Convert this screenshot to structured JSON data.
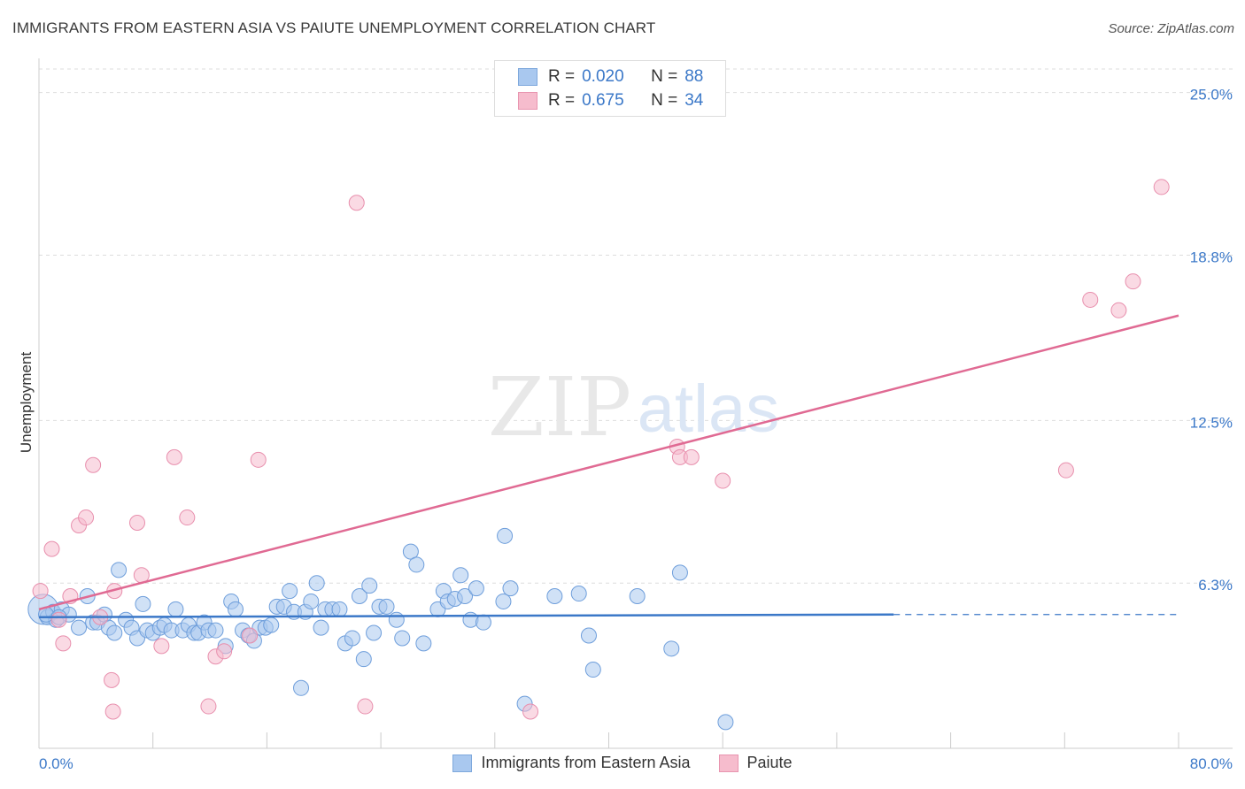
{
  "title": "IMMIGRANTS FROM EASTERN ASIA VS PAIUTE UNEMPLOYMENT CORRELATION CHART",
  "source": "Source: ZipAtlas.com",
  "watermark": {
    "zip": "ZIP",
    "atlas": "atlas"
  },
  "colors": {
    "blue": "#3b78c8",
    "blue_fill": "#a9c8ef",
    "pink": "#e06a93",
    "pink_fill": "#f6bccd",
    "grid": "#dddddd",
    "tick_label": "#3b78c8"
  },
  "legend": {
    "rows": [
      {
        "r_label": "R =",
        "r_value": "0.020",
        "n_label": "N =",
        "n_value": "88"
      },
      {
        "r_label": "R =",
        "r_value": "0.675",
        "n_label": "N =",
        "n_value": "34"
      }
    ]
  },
  "bottom_legend": {
    "series_a": "Immigrants from Eastern Asia",
    "series_b": "Paiute"
  },
  "chart_data": {
    "type": "scatter",
    "title": "IMMIGRANTS FROM EASTERN ASIA VS PAIUTE UNEMPLOYMENT CORRELATION CHART",
    "xlabel": "",
    "ylabel": "Unemployment",
    "xlim": [
      0,
      80
    ],
    "ylim": [
      0,
      25.9
    ],
    "x_tick_labels": [
      "0.0%",
      "80.0%"
    ],
    "y_ticks": [
      6.3,
      12.5,
      18.8,
      25.0
    ],
    "y_tick_labels": [
      "6.3%",
      "12.5%",
      "18.8%",
      "25.0%"
    ],
    "grid": true,
    "legend_placement": "top-center",
    "series": [
      {
        "name": "Immigrants from Eastern Asia",
        "color": "#3b78c8",
        "r": 0.02,
        "n": 88,
        "trend": {
          "x0": 0,
          "y0": 5.0,
          "x1": 60,
          "y1": 5.1,
          "dashed_to": 80,
          "dashed_y": 5.1
        },
        "points": [
          [
            0.3,
            5.3
          ],
          [
            0.6,
            5.0
          ],
          [
            1.0,
            5.2
          ],
          [
            1.2,
            4.9
          ],
          [
            1.6,
            5.3
          ],
          [
            2.1,
            5.1
          ],
          [
            2.8,
            4.6
          ],
          [
            3.4,
            5.8
          ],
          [
            3.8,
            4.8
          ],
          [
            4.1,
            4.8
          ],
          [
            4.6,
            5.1
          ],
          [
            4.9,
            4.6
          ],
          [
            5.3,
            4.4
          ],
          [
            5.6,
            6.8
          ],
          [
            6.1,
            4.9
          ],
          [
            6.5,
            4.6
          ],
          [
            6.9,
            4.2
          ],
          [
            7.3,
            5.5
          ],
          [
            7.6,
            4.5
          ],
          [
            8.0,
            4.4
          ],
          [
            8.5,
            4.6
          ],
          [
            8.8,
            4.7
          ],
          [
            9.3,
            4.5
          ],
          [
            9.6,
            5.3
          ],
          [
            10.1,
            4.5
          ],
          [
            10.5,
            4.7
          ],
          [
            10.9,
            4.4
          ],
          [
            11.2,
            4.4
          ],
          [
            11.6,
            4.8
          ],
          [
            11.9,
            4.5
          ],
          [
            12.4,
            4.5
          ],
          [
            13.1,
            3.9
          ],
          [
            13.5,
            5.6
          ],
          [
            13.8,
            5.3
          ],
          [
            14.3,
            4.5
          ],
          [
            14.7,
            4.3
          ],
          [
            15.1,
            4.1
          ],
          [
            15.5,
            4.6
          ],
          [
            15.9,
            4.6
          ],
          [
            16.3,
            4.7
          ],
          [
            16.7,
            5.4
          ],
          [
            17.2,
            5.4
          ],
          [
            17.6,
            6.0
          ],
          [
            17.9,
            5.2
          ],
          [
            18.4,
            2.3
          ],
          [
            18.7,
            5.2
          ],
          [
            19.1,
            5.6
          ],
          [
            19.5,
            6.3
          ],
          [
            19.8,
            4.6
          ],
          [
            20.1,
            5.3
          ],
          [
            20.6,
            5.3
          ],
          [
            21.1,
            5.3
          ],
          [
            21.5,
            4.0
          ],
          [
            22.0,
            4.2
          ],
          [
            22.5,
            5.8
          ],
          [
            22.8,
            3.4
          ],
          [
            23.2,
            6.2
          ],
          [
            23.5,
            4.4
          ],
          [
            23.9,
            5.4
          ],
          [
            24.4,
            5.4
          ],
          [
            25.1,
            4.9
          ],
          [
            25.5,
            4.2
          ],
          [
            26.1,
            7.5
          ],
          [
            26.5,
            7.0
          ],
          [
            27.0,
            4.0
          ],
          [
            28.0,
            5.3
          ],
          [
            28.4,
            6.0
          ],
          [
            28.7,
            5.6
          ],
          [
            29.2,
            5.7
          ],
          [
            29.6,
            6.6
          ],
          [
            29.9,
            5.8
          ],
          [
            30.3,
            4.9
          ],
          [
            30.7,
            6.1
          ],
          [
            31.2,
            4.8
          ],
          [
            32.6,
            5.6
          ],
          [
            32.7,
            8.1
          ],
          [
            33.1,
            6.1
          ],
          [
            34.1,
            1.7
          ],
          [
            36.2,
            5.8
          ],
          [
            37.9,
            5.9
          ],
          [
            38.6,
            4.3
          ],
          [
            38.9,
            3.0
          ],
          [
            42.0,
            5.8
          ],
          [
            44.4,
            3.8
          ],
          [
            45.0,
            6.7
          ],
          [
            48.2,
            1.0
          ],
          [
            0.5,
            5.1
          ],
          [
            1.4,
            5.0
          ]
        ]
      },
      {
        "name": "Paiute",
        "color": "#e06a93",
        "r": 0.675,
        "n": 34,
        "trend": {
          "x0": 0,
          "y0": 5.3,
          "x1": 80,
          "y1": 16.5
        },
        "points": [
          [
            0.1,
            6.0
          ],
          [
            0.9,
            7.6
          ],
          [
            1.4,
            4.9
          ],
          [
            1.7,
            4.0
          ],
          [
            2.2,
            5.8
          ],
          [
            2.8,
            8.5
          ],
          [
            3.3,
            8.8
          ],
          [
            3.8,
            10.8
          ],
          [
            4.3,
            5.0
          ],
          [
            5.1,
            2.6
          ],
          [
            5.2,
            1.4
          ],
          [
            5.3,
            6.0
          ],
          [
            6.9,
            8.6
          ],
          [
            7.2,
            6.6
          ],
          [
            8.6,
            3.9
          ],
          [
            9.5,
            11.1
          ],
          [
            10.4,
            8.8
          ],
          [
            11.9,
            1.6
          ],
          [
            12.4,
            3.5
          ],
          [
            13.0,
            3.7
          ],
          [
            14.8,
            4.3
          ],
          [
            15.4,
            11.0
          ],
          [
            22.3,
            20.8
          ],
          [
            22.9,
            1.6
          ],
          [
            34.5,
            1.4
          ],
          [
            44.8,
            11.5
          ],
          [
            45.0,
            11.1
          ],
          [
            45.8,
            11.1
          ],
          [
            48.0,
            10.2
          ],
          [
            72.1,
            10.6
          ],
          [
            73.8,
            17.1
          ],
          [
            75.8,
            16.7
          ],
          [
            76.8,
            17.8
          ],
          [
            78.8,
            21.4
          ]
        ]
      }
    ]
  }
}
